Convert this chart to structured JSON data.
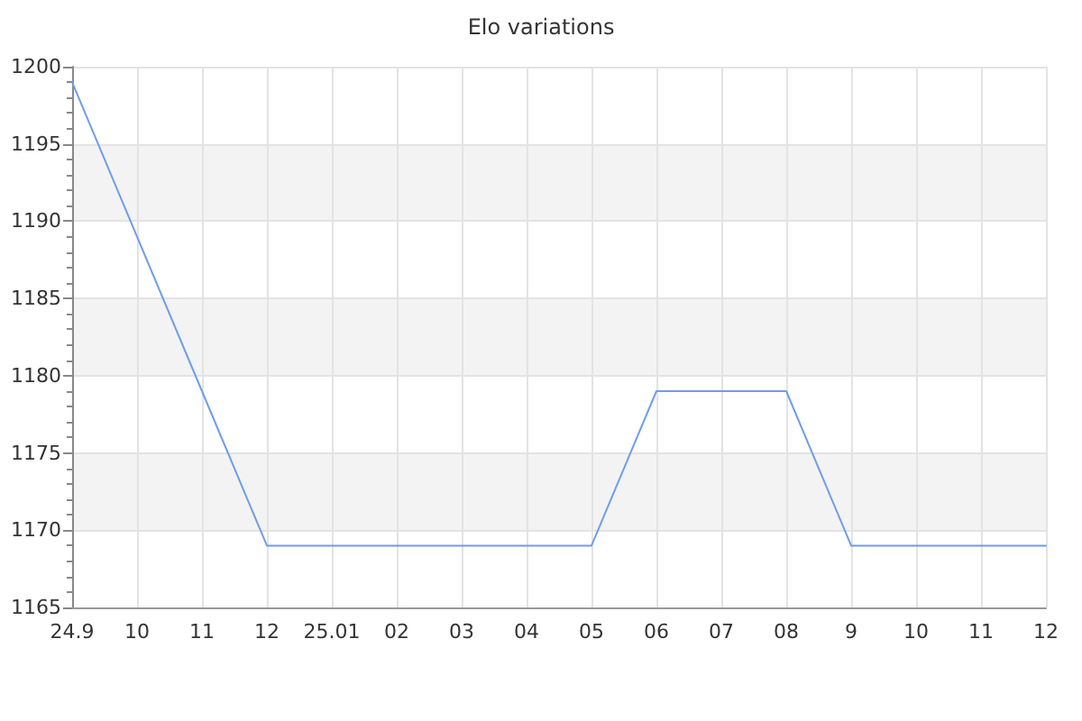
{
  "chart_data": {
    "type": "line",
    "title": "Elo variations",
    "categories": [
      "24.9",
      "10",
      "11",
      "12",
      "25.01",
      "02",
      "03",
      "04",
      "05",
      "06",
      "07",
      "08",
      "9",
      "10",
      "11",
      "12"
    ],
    "series": [
      {
        "color": "#6d9eeb",
        "values": [
          1199,
          1189,
          1179,
          1169,
          1169,
          1169,
          1169,
          1169,
          1169,
          1179,
          1179,
          1179,
          1169,
          1169,
          1169,
          1169
        ]
      }
    ],
    "ylim": [
      1165,
      1200
    ],
    "yticks": [
      1165,
      1170,
      1175,
      1180,
      1185,
      1190,
      1195,
      1200
    ],
    "grid": true,
    "marker": "none",
    "line_style": "solid"
  }
}
